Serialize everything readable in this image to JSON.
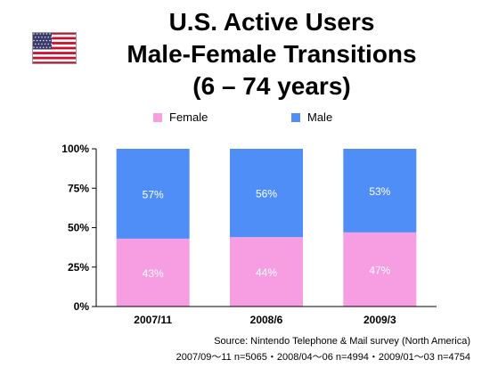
{
  "title": {
    "line1": "U.S. Active Users",
    "line2": "Male-Female Transitions",
    "line3": "(6 – 74 years)"
  },
  "flag_icon": "us-flag",
  "colors": {
    "female": "#f79de2",
    "male": "#4f8ef7",
    "axis": "#000000"
  },
  "legend": {
    "position": "top",
    "female_label": "Female",
    "male_label": "Male"
  },
  "source": {
    "line1": "Source: Nintendo  Telephone & Mail survey (North America)",
    "line2": "2007/09～11 n=5065・2008/04～06 n=4994・2009/01～03 n=4754"
  },
  "chart_data": {
    "type": "bar",
    "stacked": true,
    "categories": [
      "2007/11",
      "2008/6",
      "2009/3"
    ],
    "series": [
      {
        "name": "Female",
        "values": [
          43,
          44,
          47
        ],
        "labels": [
          "43%",
          "44%",
          "47%"
        ],
        "color": "#f79de2"
      },
      {
        "name": "Male",
        "values": [
          57,
          56,
          53
        ],
        "labels": [
          "57%",
          "56%",
          "53%"
        ],
        "color": "#4f8ef7"
      }
    ],
    "ylim": [
      0,
      100
    ],
    "yticks": [
      0,
      25,
      50,
      75,
      100
    ],
    "ytick_labels": [
      "0%",
      "25%",
      "50%",
      "75%",
      "100%"
    ],
    "grid": false,
    "xlabel": "",
    "ylabel": ""
  }
}
